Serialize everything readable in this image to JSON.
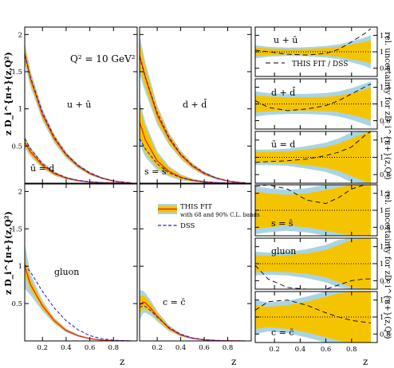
{
  "colors": {
    "band68": "#f5c400",
    "band90": "#a9d4e6",
    "fit": "#e8281e",
    "dss": "#1c1cc8",
    "ratio_dss": "#000000"
  },
  "labels": {
    "q2": "Q² = 10 GeV²",
    "ylabel_left_top": "z D_i^{π+}(z,Q²)",
    "ylabel_left_bottom": "z D_i^{π+}(z,Q²)",
    "ylabel_right_top": "rel. uncertainty for zD_i^{π+}(z,Q²)",
    "ylabel_right_bottom": "rel. uncertainty for zD_i^{π+}(z,Q²)",
    "xlabel": "z"
  },
  "legend_center": {
    "fit": "THIS FIT",
    "fit_sub": "with 68 and 90% C.L. bands",
    "dss": "DSS"
  },
  "legend_ratio": {
    "dss": "THIS FIT / DSS"
  },
  "chart_data": [
    {
      "type": "line",
      "id": "left-top",
      "xlim": [
        0.05,
        1.0
      ],
      "ylim": [
        0,
        2.1
      ],
      "yticks": [
        0.5,
        1,
        1.5,
        2
      ],
      "curves": [
        {
          "label": "u + ū",
          "x": [
            0.05,
            0.1,
            0.2,
            0.3,
            0.4,
            0.5,
            0.6,
            0.7,
            0.8,
            0.9,
            0.95
          ],
          "fit": [
            1.75,
            1.4,
            0.92,
            0.6,
            0.38,
            0.23,
            0.13,
            0.07,
            0.03,
            0.01,
            0.005
          ],
          "dss": [
            1.72,
            1.42,
            0.95,
            0.62,
            0.39,
            0.24,
            0.14,
            0.07,
            0.03,
            0.01,
            0.005
          ],
          "band68": [
            0.09,
            0.07,
            0.05,
            0.04,
            0.03,
            0.02,
            0.015,
            0.01,
            0.006,
            0.003,
            0.002
          ],
          "band90": [
            0.14,
            0.11,
            0.08,
            0.06,
            0.045,
            0.03,
            0.022,
            0.015,
            0.009,
            0.005,
            0.003
          ]
        },
        {
          "label": "ū = d",
          "x": [
            0.05,
            0.1,
            0.2,
            0.3,
            0.4,
            0.5,
            0.6,
            0.7,
            0.8,
            0.9,
            0.95
          ],
          "fit": [
            0.55,
            0.42,
            0.24,
            0.13,
            0.07,
            0.035,
            0.017,
            0.008,
            0.003,
            0.001,
            0.0005
          ],
          "dss": [
            0.6,
            0.46,
            0.26,
            0.14,
            0.075,
            0.038,
            0.018,
            0.008,
            0.003,
            0.001,
            0.0005
          ],
          "band68": [
            0.05,
            0.04,
            0.03,
            0.02,
            0.012,
            0.008,
            0.005,
            0.003,
            0.002,
            0.001,
            0.0005
          ],
          "band90": [
            0.08,
            0.06,
            0.045,
            0.03,
            0.018,
            0.012,
            0.008,
            0.005,
            0.003,
            0.0015,
            0.001
          ]
        }
      ]
    },
    {
      "type": "line",
      "id": "middle-top",
      "xlim": [
        0.05,
        1.0
      ],
      "ylim": [
        0,
        2.1
      ],
      "curves": [
        {
          "label": "d + d̄",
          "x": [
            0.05,
            0.1,
            0.2,
            0.3,
            0.4,
            0.5,
            0.6,
            0.7,
            0.8,
            0.9,
            0.95
          ],
          "fit": [
            1.72,
            1.42,
            0.92,
            0.6,
            0.38,
            0.23,
            0.13,
            0.07,
            0.03,
            0.01,
            0.005
          ],
          "dss": [
            1.7,
            1.42,
            0.95,
            0.62,
            0.39,
            0.24,
            0.14,
            0.07,
            0.03,
            0.01,
            0.005
          ],
          "band68": [
            0.18,
            0.14,
            0.09,
            0.06,
            0.04,
            0.028,
            0.018,
            0.011,
            0.006,
            0.003,
            0.002
          ],
          "band90": [
            0.26,
            0.2,
            0.13,
            0.085,
            0.058,
            0.04,
            0.026,
            0.016,
            0.009,
            0.005,
            0.003
          ]
        },
        {
          "label": "s = s̄",
          "x": [
            0.05,
            0.1,
            0.2,
            0.3,
            0.4,
            0.5,
            0.6,
            0.7,
            0.8,
            0.9,
            0.95
          ],
          "fit": [
            0.82,
            0.58,
            0.3,
            0.16,
            0.08,
            0.04,
            0.018,
            0.008,
            0.003,
            0.001,
            0.0005
          ],
          "dss": [
            0.6,
            0.46,
            0.26,
            0.14,
            0.075,
            0.038,
            0.018,
            0.008,
            0.003,
            0.001,
            0.0005
          ],
          "band68": [
            0.22,
            0.17,
            0.09,
            0.05,
            0.028,
            0.015,
            0.008,
            0.004,
            0.002,
            0.001,
            0.0005
          ],
          "band90": [
            0.3,
            0.23,
            0.13,
            0.07,
            0.04,
            0.022,
            0.012,
            0.006,
            0.003,
            0.0015,
            0.001
          ]
        }
      ]
    },
    {
      "type": "line",
      "id": "left-bottom",
      "xlim": [
        0.05,
        1.0
      ],
      "ylim": [
        0,
        2.1
      ],
      "xticks": [
        0.2,
        0.4,
        0.6,
        0.8
      ],
      "yticks": [
        0.5,
        1,
        1.5,
        2
      ],
      "curves": [
        {
          "label": "gluon",
          "x": [
            0.05,
            0.1,
            0.2,
            0.3,
            0.4,
            0.5,
            0.6,
            0.7,
            0.8,
            0.9,
            0.95
          ],
          "fit": [
            1.0,
            0.75,
            0.47,
            0.27,
            0.14,
            0.07,
            0.03,
            0.012,
            0.004,
            0.001,
            0.0005
          ],
          "dss": [
            1.02,
            0.92,
            0.66,
            0.44,
            0.27,
            0.15,
            0.07,
            0.03,
            0.01,
            0.003,
            0.001
          ],
          "band68": [
            0.12,
            0.07,
            0.04,
            0.025,
            0.015,
            0.009,
            0.005,
            0.003,
            0.002,
            0.001,
            0.0005
          ],
          "band90": [
            0.3,
            0.14,
            0.07,
            0.04,
            0.025,
            0.015,
            0.008,
            0.005,
            0.003,
            0.0015,
            0.001
          ]
        }
      ]
    },
    {
      "type": "line",
      "id": "middle-bottom",
      "xlim": [
        0.05,
        1.0
      ],
      "ylim": [
        0,
        2.1
      ],
      "xticks": [
        0.2,
        0.4,
        0.6,
        0.8
      ],
      "curves": [
        {
          "label": "c = c̄",
          "x": [
            0.05,
            0.08,
            0.1,
            0.15,
            0.2,
            0.3,
            0.4,
            0.5,
            0.6,
            0.7,
            0.8,
            0.9,
            0.95
          ],
          "fit": [
            0.48,
            0.52,
            0.51,
            0.43,
            0.33,
            0.17,
            0.08,
            0.035,
            0.015,
            0.006,
            0.002,
            0.0008,
            0.0004
          ],
          "dss": [
            0.45,
            0.47,
            0.46,
            0.4,
            0.32,
            0.18,
            0.09,
            0.04,
            0.016,
            0.006,
            0.002,
            0.0008,
            0.0004
          ],
          "band68": [
            0.12,
            0.09,
            0.08,
            0.06,
            0.045,
            0.025,
            0.013,
            0.007,
            0.004,
            0.002,
            0.001,
            0.0005,
            0.0003
          ],
          "band90": [
            0.2,
            0.15,
            0.13,
            0.1,
            0.07,
            0.04,
            0.02,
            0.011,
            0.006,
            0.003,
            0.0015,
            0.0008,
            0.0005
          ]
        }
      ]
    },
    {
      "type": "area",
      "id": "ratios",
      "xlim": [
        0.05,
        1.0
      ],
      "ylim": [
        0.7,
        1.3
      ],
      "xticks": [
        0.2,
        0.4,
        0.6,
        0.8
      ],
      "yticks": [
        0.8,
        1,
        1.2
      ],
      "panels": [
        {
          "label": "u + ū",
          "x": [
            0.05,
            0.15,
            0.3,
            0.45,
            0.6,
            0.7,
            0.8,
            0.9,
            0.95
          ],
          "u68": [
            0.05,
            0.04,
            0.03,
            0.035,
            0.045,
            0.06,
            0.09,
            0.12,
            0.14
          ],
          "u90": [
            0.08,
            0.06,
            0.05,
            0.055,
            0.07,
            0.09,
            0.13,
            0.17,
            0.2
          ],
          "ratio": [
            1.02,
            1.0,
            0.97,
            0.96,
            0.98,
            1.03,
            1.12,
            1.22,
            1.28
          ]
        },
        {
          "label": "d + d̄",
          "x": [
            0.05,
            0.15,
            0.3,
            0.45,
            0.6,
            0.7,
            0.8,
            0.9,
            0.95
          ],
          "u68": [
            0.1,
            0.09,
            0.08,
            0.08,
            0.085,
            0.1,
            0.13,
            0.17,
            0.2
          ],
          "u90": [
            0.15,
            0.13,
            0.12,
            0.12,
            0.13,
            0.15,
            0.19,
            0.24,
            0.27
          ],
          "ratio": [
            1.04,
            0.96,
            0.92,
            0.94,
            0.98,
            1.04,
            1.12,
            1.2,
            1.24
          ]
        },
        {
          "label": "ū = d",
          "x": [
            0.05,
            0.15,
            0.3,
            0.45,
            0.6,
            0.7,
            0.8,
            0.9,
            0.95
          ],
          "u68": [
            0.06,
            0.06,
            0.07,
            0.09,
            0.12,
            0.16,
            0.22,
            0.28,
            0.3
          ],
          "u90": [
            0.09,
            0.09,
            0.1,
            0.13,
            0.17,
            0.22,
            0.29,
            0.3,
            0.3
          ],
          "ratio": [
            0.94,
            0.95,
            0.96,
            0.98,
            1.02,
            1.06,
            1.12,
            1.25,
            1.3
          ]
        },
        {
          "label": "s = s̄",
          "x": [
            0.05,
            0.15,
            0.3,
            0.45,
            0.6,
            0.7,
            0.8,
            0.9,
            0.95
          ],
          "u68": [
            0.22,
            0.2,
            0.18,
            0.2,
            0.24,
            0.27,
            0.3,
            0.3,
            0.3
          ],
          "u90": [
            0.28,
            0.26,
            0.24,
            0.26,
            0.3,
            0.3,
            0.3,
            0.3,
            0.3
          ],
          "ratio": [
            1.28,
            1.32,
            1.25,
            1.12,
            1.08,
            1.15,
            1.25,
            1.3,
            1.3
          ]
        },
        {
          "label": "gluon",
          "x": [
            0.05,
            0.15,
            0.3,
            0.45,
            0.6,
            0.7,
            0.8,
            0.9,
            0.95
          ],
          "u68": [
            0.1,
            0.09,
            0.1,
            0.12,
            0.16,
            0.22,
            0.28,
            0.3,
            0.3
          ],
          "u90": [
            0.14,
            0.13,
            0.14,
            0.17,
            0.22,
            0.28,
            0.3,
            0.3,
            0.3
          ],
          "ratio": [
            0.98,
            0.82,
            0.72,
            0.68,
            0.7,
            0.75,
            0.8,
            0.82,
            0.82
          ]
        },
        {
          "label": "c = c̄",
          "x": [
            0.05,
            0.15,
            0.3,
            0.45,
            0.6,
            0.7,
            0.8,
            0.9,
            0.95
          ],
          "u68": [
            0.14,
            0.12,
            0.14,
            0.18,
            0.24,
            0.28,
            0.3,
            0.3,
            0.3
          ],
          "u90": [
            0.2,
            0.17,
            0.19,
            0.24,
            0.3,
            0.3,
            0.3,
            0.3,
            0.3
          ],
          "ratio": [
            1.08,
            1.18,
            1.2,
            1.14,
            1.05,
            1.0,
            0.96,
            0.94,
            0.93
          ]
        }
      ]
    }
  ]
}
